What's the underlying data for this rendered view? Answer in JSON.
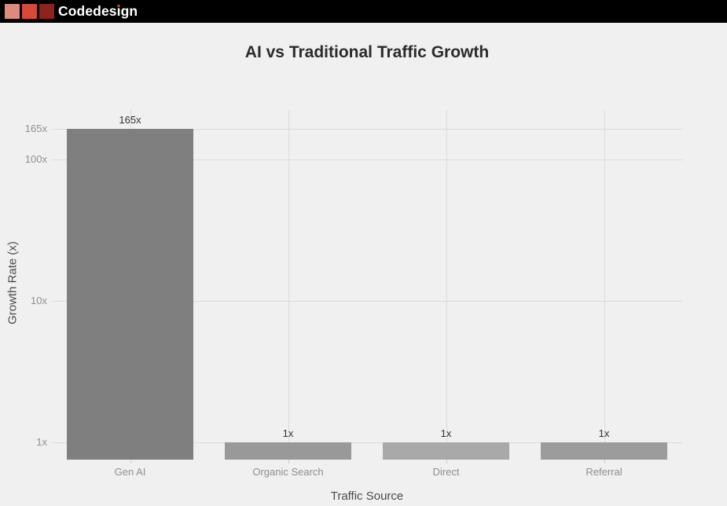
{
  "header": {
    "brand": {
      "full": "Codedesign",
      "pre": "Codedes",
      "dotless_i": "ı",
      "post": "gn"
    },
    "logo_colors": [
      "#dd8a7f",
      "#d8493a",
      "#8e221c"
    ],
    "accent_color": "#d8493a",
    "background": "#000000"
  },
  "theme": {
    "page_background": "#f0f0f0",
    "gridline_color": "#dcdcdc",
    "title_color": "#2b2b2b",
    "tick_label_color": "#8f8f8f",
    "value_label_color": "#333333"
  },
  "chart_data": {
    "type": "bar",
    "title": "AI vs Traditional Traffic Growth",
    "xlabel": "Traffic Source",
    "ylabel": "Growth Rate (x)",
    "categories": [
      "Gen AI",
      "Organic Search",
      "Direct",
      "Referral"
    ],
    "values": [
      165,
      1,
      1,
      1
    ],
    "value_labels": [
      "165x",
      "1x",
      "1x",
      "1x"
    ],
    "bar_colors": [
      "#7f7f7f",
      "#999999",
      "#a9a9a9",
      "#9c9c9c"
    ],
    "y_scale": "log",
    "y_ticks": [
      {
        "label": "165x",
        "value": 165
      },
      {
        "label": "100x",
        "value": 100
      },
      {
        "label": "10x",
        "value": 10
      },
      {
        "label": "1x",
        "value": 1
      }
    ],
    "ylim_log_min_approx": 0.75,
    "grid": true,
    "legend": false
  }
}
